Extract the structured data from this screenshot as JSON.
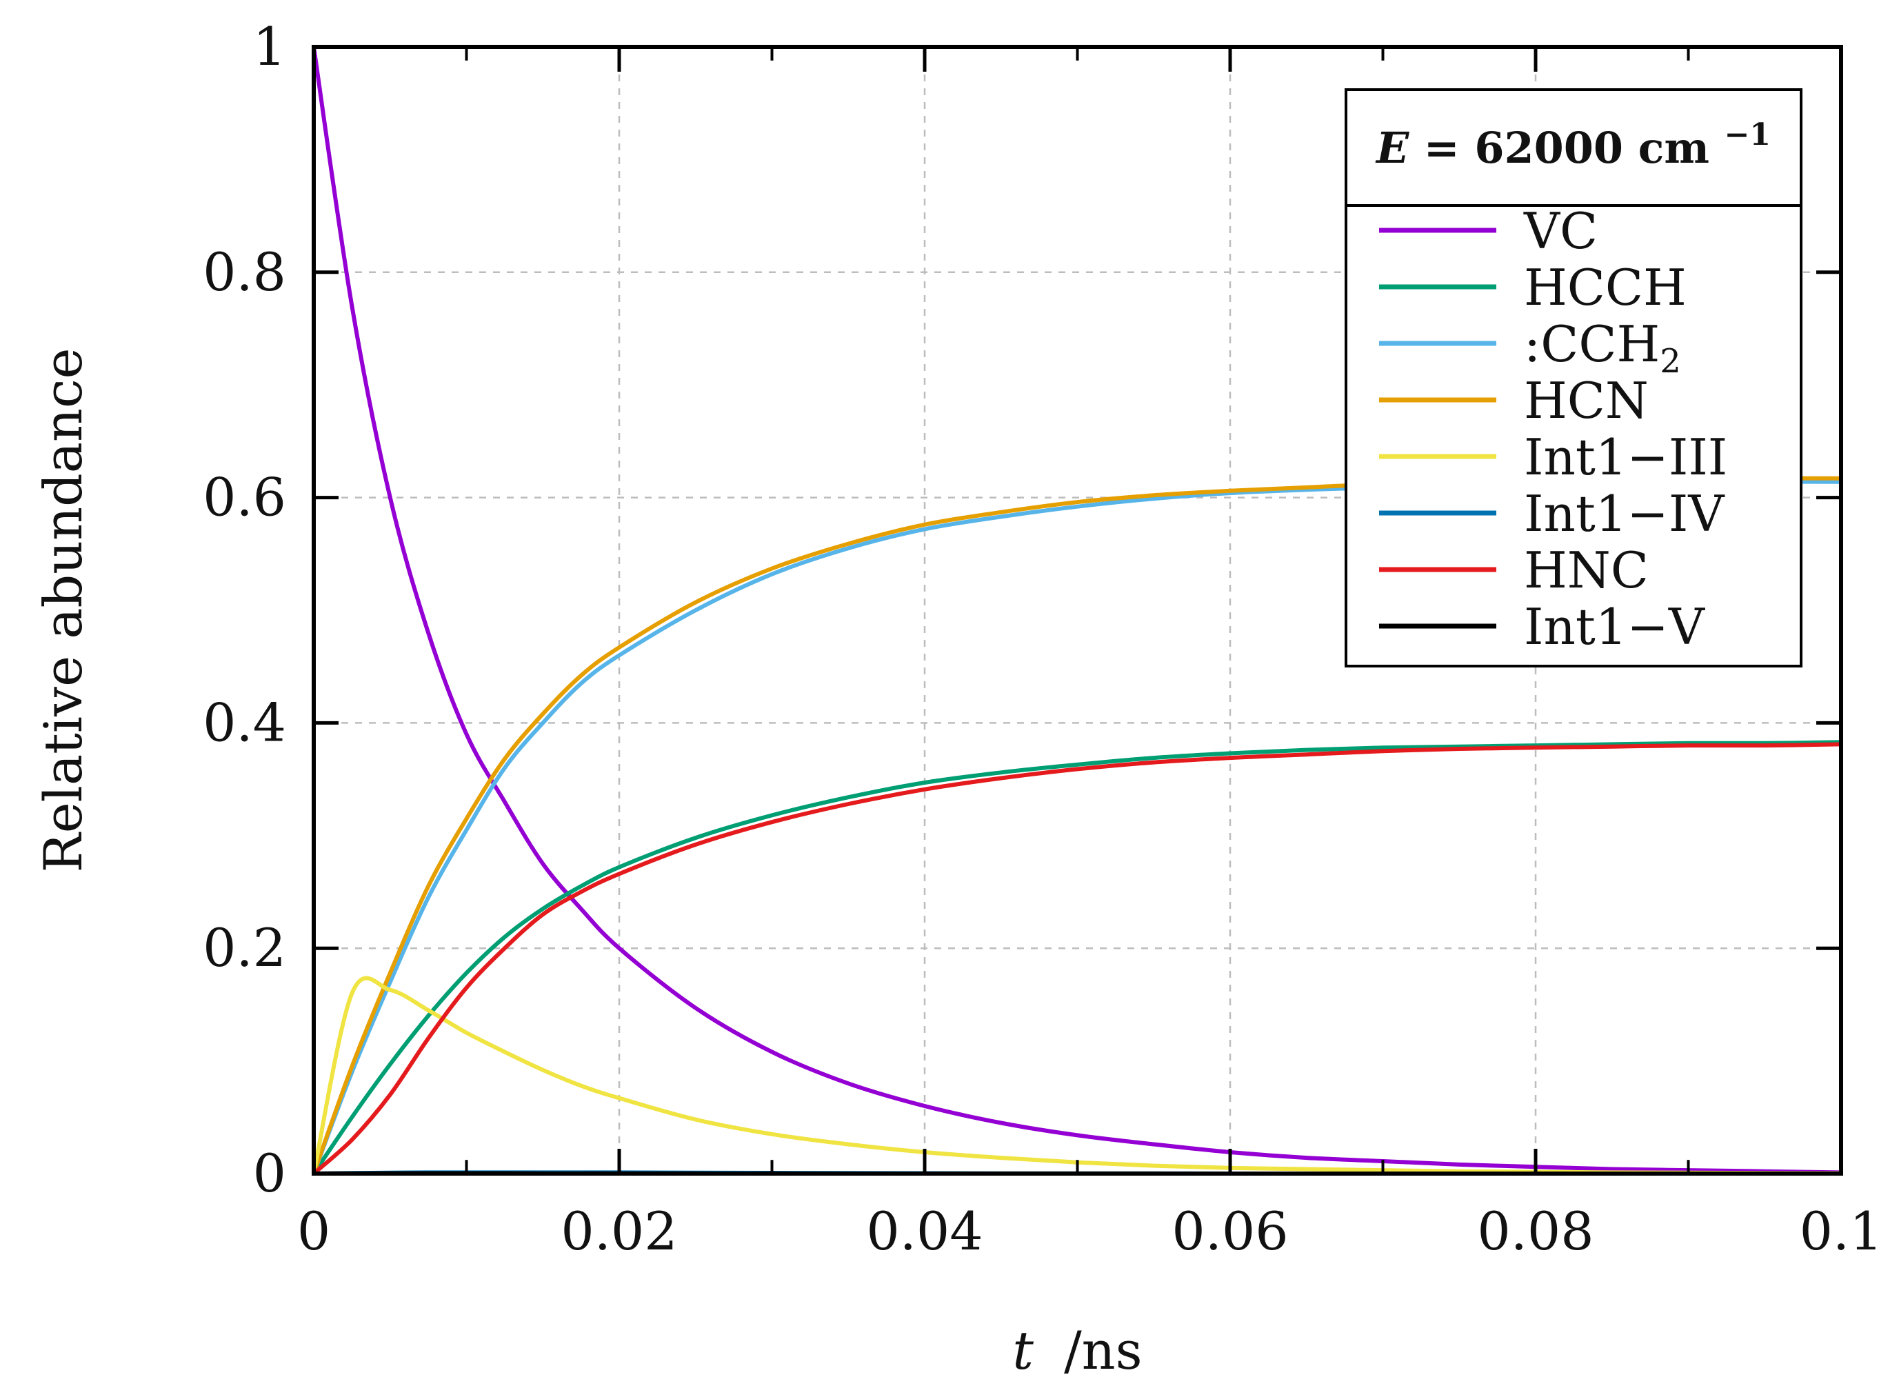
{
  "chart_data": {
    "type": "line",
    "title": "",
    "xlabel": {
      "var": "t",
      "unit": "/ns"
    },
    "ylabel": "Relative abundance",
    "xlim": [
      0,
      0.1
    ],
    "ylim": [
      0,
      1
    ],
    "xticks": [
      0,
      0.02,
      0.04,
      0.06,
      0.08,
      0.1
    ],
    "xtick_labels": [
      "0",
      "0.02",
      "0.04",
      "0.06",
      "0.08",
      "0.1"
    ],
    "yticks": [
      0,
      0.2,
      0.4,
      0.6,
      0.8,
      1
    ],
    "ytick_labels": [
      "0",
      "0.2",
      "0.4",
      "0.6",
      "0.8",
      "1"
    ],
    "grid": true,
    "legend": {
      "position": "top-right",
      "title": {
        "var": "E",
        "text": " = 62000 cm",
        "sup": "−1"
      }
    },
    "x": [
      0,
      0.0025,
      0.005,
      0.0075,
      0.01,
      0.0125,
      0.015,
      0.0175,
      0.02,
      0.025,
      0.03,
      0.035,
      0.04,
      0.045,
      0.05,
      0.055,
      0.06,
      0.065,
      0.07,
      0.075,
      0.08,
      0.085,
      0.09,
      0.095,
      0.1
    ],
    "series": [
      {
        "name": "VC",
        "label": "VC",
        "color": "#9400d3",
        "values": [
          1.0,
          0.77,
          0.6,
          0.48,
          0.39,
          0.33,
          0.275,
          0.235,
          0.2,
          0.147,
          0.108,
          0.08,
          0.06,
          0.045,
          0.034,
          0.026,
          0.019,
          0.014,
          0.011,
          0.008,
          0.006,
          0.004,
          0.003,
          0.002,
          0.001
        ]
      },
      {
        "name": "HCCH",
        "label": "HCCH",
        "color": "#009e73",
        "values": [
          0,
          0.05,
          0.097,
          0.14,
          0.178,
          0.21,
          0.235,
          0.255,
          0.272,
          0.298,
          0.318,
          0.334,
          0.347,
          0.356,
          0.363,
          0.369,
          0.373,
          0.376,
          0.378,
          0.379,
          0.38,
          0.381,
          0.382,
          0.382,
          0.383
        ]
      },
      {
        "name": ":CCH2",
        "label": ":CCH",
        "sub": "2",
        "color": "#56b4e9",
        "values": [
          0,
          0.09,
          0.17,
          0.245,
          0.305,
          0.36,
          0.4,
          0.435,
          0.46,
          0.5,
          0.532,
          0.555,
          0.572,
          0.583,
          0.592,
          0.599,
          0.604,
          0.607,
          0.609,
          0.611,
          0.612,
          0.613,
          0.613,
          0.614,
          0.614
        ]
      },
      {
        "name": "HCN",
        "label": "HCN",
        "color": "#e69f00",
        "values": [
          0,
          0.095,
          0.178,
          0.255,
          0.315,
          0.368,
          0.408,
          0.442,
          0.467,
          0.507,
          0.537,
          0.559,
          0.576,
          0.587,
          0.596,
          0.602,
          0.606,
          0.609,
          0.612,
          0.613,
          0.614,
          0.615,
          0.616,
          0.617,
          0.617
        ]
      },
      {
        "name": "Int1-III",
        "label": "Int1−III",
        "color": "#f0e442",
        "values": [
          0,
          0.16,
          0.163,
          0.145,
          0.125,
          0.108,
          0.092,
          0.078,
          0.067,
          0.048,
          0.035,
          0.026,
          0.019,
          0.014,
          0.01,
          0.007,
          0.005,
          0.004,
          0.003,
          0.002,
          0.0015,
          0.001,
          0.0008,
          0.0005,
          0.0003
        ]
      },
      {
        "name": "Int1-IV",
        "label": "Int1−IV",
        "color": "#0072b2",
        "values": [
          0,
          0.0005,
          0.0008,
          0.001,
          0.001,
          0.001,
          0.001,
          0.001,
          0.001,
          0.0008,
          0.0006,
          0.0004,
          0.0003,
          0.0002,
          0.0001,
          0.0001,
          0,
          0,
          0,
          0,
          0,
          0,
          0,
          0,
          0
        ]
      },
      {
        "name": "HNC",
        "label": "HNC",
        "color": "#e41a1c",
        "values": [
          0,
          0.03,
          0.07,
          0.12,
          0.165,
          0.2,
          0.23,
          0.25,
          0.266,
          0.292,
          0.312,
          0.328,
          0.341,
          0.351,
          0.359,
          0.365,
          0.369,
          0.372,
          0.375,
          0.377,
          0.378,
          0.379,
          0.38,
          0.38,
          0.381
        ]
      },
      {
        "name": "Int1-V",
        "label": "Int1−V",
        "color": "#000000",
        "values": [
          0,
          0.0002,
          0.0003,
          0.0003,
          0.0003,
          0.0003,
          0.0002,
          0.0002,
          0.0002,
          0.0001,
          0.0001,
          0,
          0,
          0,
          0,
          0,
          0,
          0,
          0,
          0,
          0,
          0,
          0,
          0,
          0
        ]
      }
    ]
  }
}
